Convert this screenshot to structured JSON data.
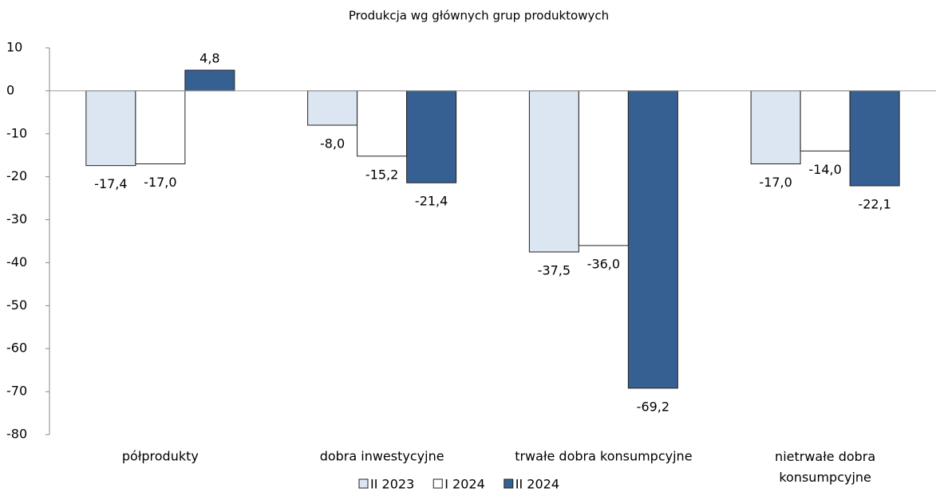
{
  "chart_data": {
    "type": "bar",
    "title": "Produkcja wg głównych grup produktowych",
    "categories": [
      "półprodukty",
      "dobra inwestycyjne",
      "trwałe dobra konsumpcyjne",
      "nietrwałe dobra konsumpcyjne"
    ],
    "series": [
      {
        "name": "II 2023",
        "color": "#dce6f2",
        "values": [
          -17.4,
          -8.0,
          -37.5,
          -17.0
        ],
        "value_labels": [
          "-17,4",
          "-8,0",
          "-37,5",
          "-17,0"
        ]
      },
      {
        "name": "I 2024",
        "color": "#ffffff",
        "values": [
          -17.0,
          -15.2,
          -36.0,
          -14.0
        ],
        "value_labels": [
          "-17,0",
          "-15,2",
          "-36,0",
          "-14,0"
        ]
      },
      {
        "name": "II 2024",
        "color": "#366092",
        "values": [
          4.8,
          -21.4,
          -69.2,
          -22.1
        ],
        "value_labels": [
          "4,8",
          "-21,4",
          "-69,2",
          "-22,1"
        ]
      }
    ],
    "ylim": [
      -80,
      10
    ],
    "yticks": [
      10,
      0,
      -10,
      -20,
      -30,
      -40,
      -50,
      -60,
      -70,
      -80
    ],
    "legend": "bottom"
  }
}
